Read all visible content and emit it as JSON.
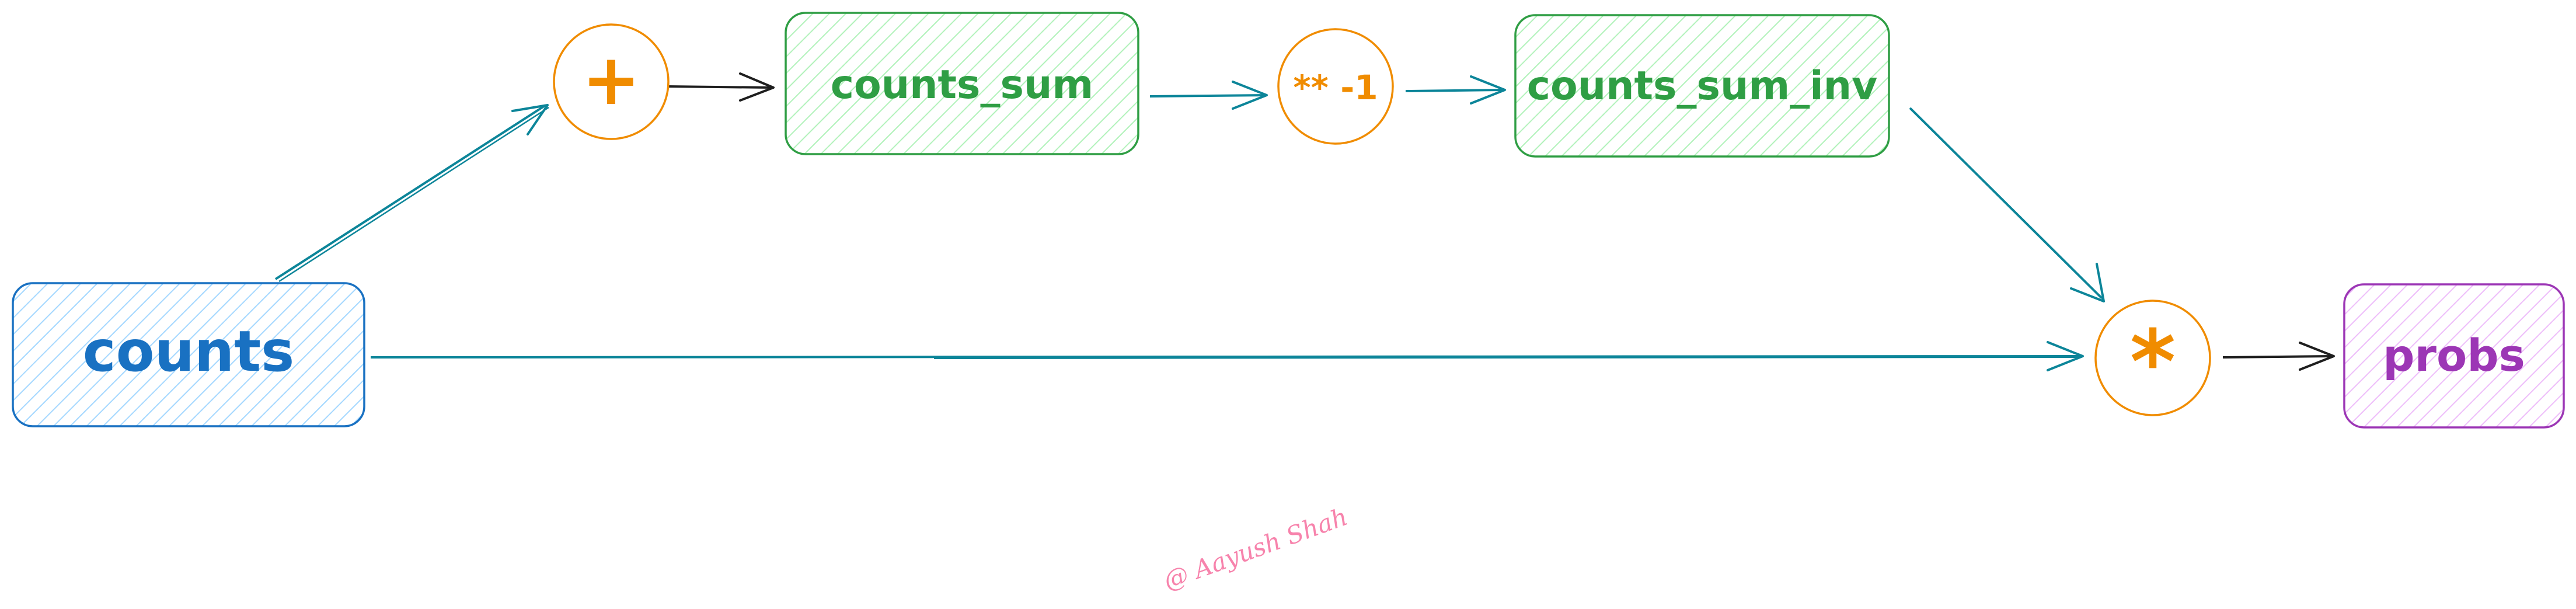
{
  "nodes": {
    "counts": {
      "label": "counts",
      "color": "#1971c2",
      "fill": "#a5d8ff"
    },
    "counts_sum": {
      "label": "counts_sum",
      "color": "#2f9e44",
      "fill": "#b2f2bb"
    },
    "counts_sum_inv": {
      "label": "counts_sum_inv",
      "color": "#2f9e44",
      "fill": "#b2f2bb"
    },
    "probs": {
      "label": "probs",
      "color": "#9c36b5",
      "fill": "#eebefa"
    }
  },
  "ops": {
    "sum": {
      "label": "+",
      "color": "#f08c00"
    },
    "pow": {
      "label": "** -1",
      "color": "#f08c00"
    },
    "mul": {
      "label": "*",
      "color": "#f08c00"
    }
  },
  "edge_colors": {
    "teal": "#0c8599",
    "black": "#1e1e1e"
  },
  "watermark": "@ Aayush Shah",
  "watermark_color": "#f783ac"
}
